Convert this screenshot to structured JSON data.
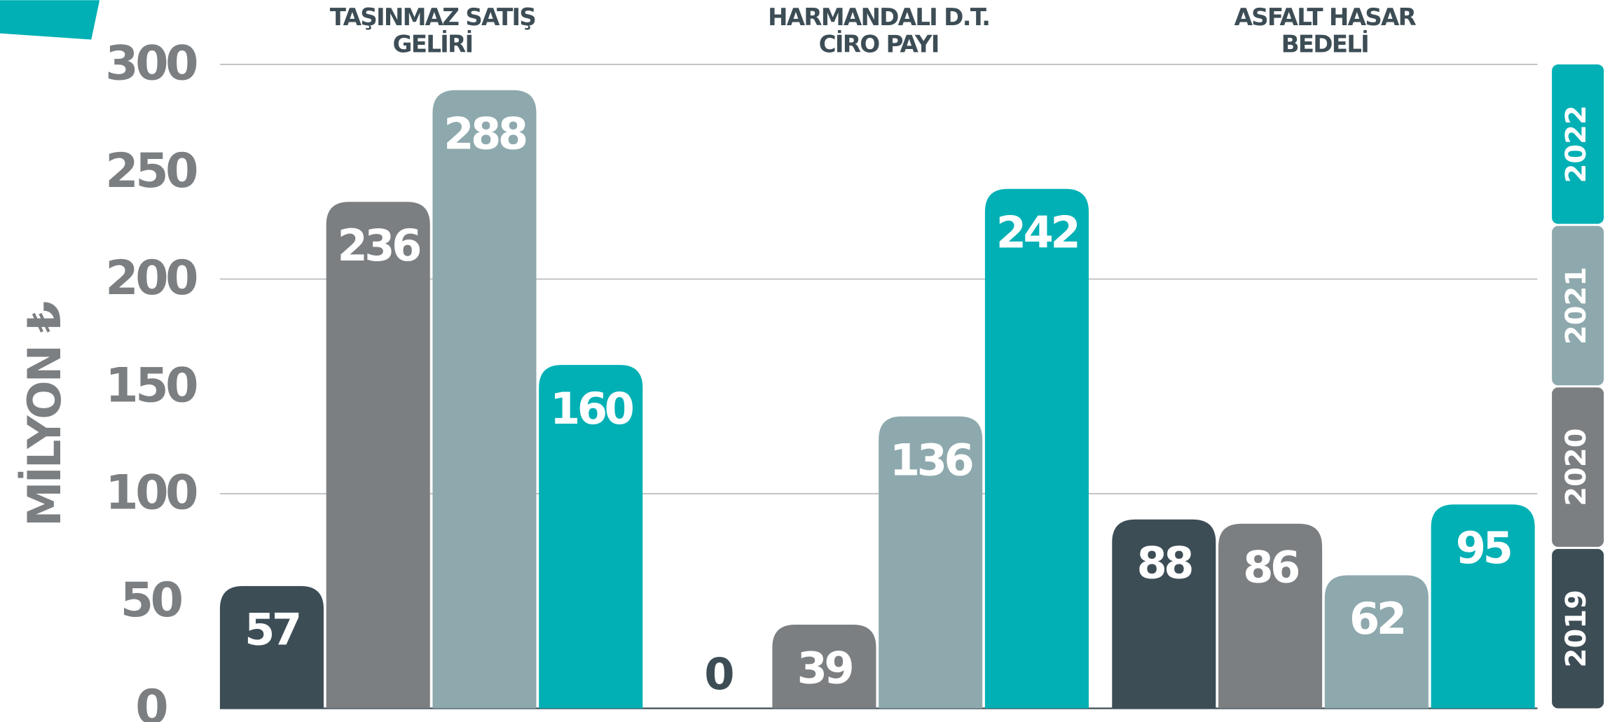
{
  "chart_data": {
    "type": "bar",
    "ylabel": "MİLYON ₺",
    "categories": [
      "TAŞINMAZ SATIŞ GELİRİ",
      "HARMANDALI D.T. CİRO PAYI",
      "ASFALT HASAR BEDELİ"
    ],
    "series": [
      {
        "name": "2019",
        "color": "#3d4d55",
        "values": [
          57,
          0,
          88
        ]
      },
      {
        "name": "2020",
        "color": "#7c7f82",
        "values": [
          236,
          39,
          86
        ]
      },
      {
        "name": "2021",
        "color": "#8ea9ad",
        "values": [
          288,
          136,
          62
        ]
      },
      {
        "name": "2022",
        "color": "#00b0b5",
        "values": [
          160,
          242,
          95
        ]
      }
    ],
    "ylim": [
      0,
      300
    ],
    "yticks": [
      0,
      50,
      100,
      150,
      200,
      250,
      300
    ],
    "grid": true,
    "legend": "right"
  }
}
